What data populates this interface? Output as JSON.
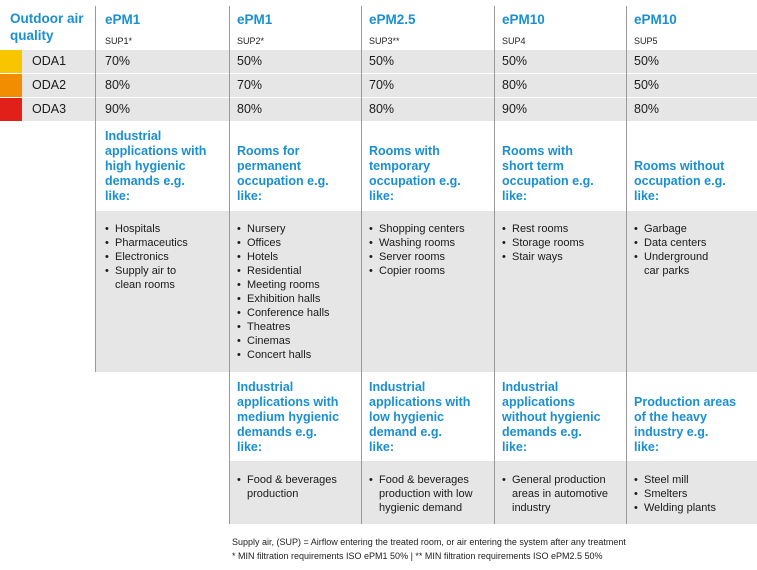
{
  "row_header": {
    "line1": "Outdoor air",
    "line2": "quality"
  },
  "columns": [
    {
      "title": "ePM1",
      "sup": "SUP1*"
    },
    {
      "title": "ePM1",
      "sup": "SUP2*"
    },
    {
      "title": "ePM2.5",
      "sup": "SUP3**"
    },
    {
      "title": "ePM10",
      "sup": "SUP4"
    },
    {
      "title": "ePM10",
      "sup": "SUP5"
    }
  ],
  "oda_rows": [
    {
      "label": "ODA1",
      "color": "#f7c600",
      "values": [
        "70%",
        "50%",
        "50%",
        "50%",
        "50%"
      ]
    },
    {
      "label": "ODA2",
      "color": "#f28c00",
      "values": [
        "80%",
        "70%",
        "70%",
        "80%",
        "50%"
      ]
    },
    {
      "label": "ODA3",
      "color": "#e1201a",
      "values": [
        "90%",
        "80%",
        "80%",
        "90%",
        "80%"
      ]
    }
  ],
  "rooms": [
    {
      "title": [
        "Industrial",
        "applications with",
        "high hygienic",
        "demands e.g.",
        "like:"
      ],
      "items": [
        "Hospitals",
        "Pharmaceutics",
        "Electronics",
        "Supply air to",
        "clean rooms"
      ]
    },
    {
      "title": [
        "Rooms for",
        "permanent",
        "occupation e.g.",
        "like:"
      ],
      "items": [
        "Nursery",
        "Offices",
        "Hotels",
        "Residential",
        "Meeting rooms",
        "Exhibition halls",
        "Conference halls",
        "Theatres",
        "Cinemas",
        "Concert halls"
      ]
    },
    {
      "title": [
        "Rooms with",
        "temporary",
        "occupation e.g.",
        "like:"
      ],
      "items": [
        "Shopping centers",
        "Washing rooms",
        "Server rooms",
        "Copier rooms"
      ]
    },
    {
      "title": [
        "Rooms with",
        "short term",
        "occupation e.g.",
        "like:"
      ],
      "items": [
        "Rest rooms",
        "Storage rooms",
        "Stair ways"
      ]
    },
    {
      "title": [
        "Rooms without",
        "occupation e.g.",
        "like:"
      ],
      "items": [
        "Garbage",
        "Data centers",
        "Underground",
        "car parks"
      ]
    }
  ],
  "industrial": [
    {
      "title": [
        "Industrial",
        "applications with",
        "medium hygienic",
        "demands e.g.",
        "like:"
      ],
      "items": [
        "Food & beverages",
        "production"
      ]
    },
    {
      "title": [
        "Industrial",
        "applications with",
        "low hygienic",
        "demand e.g.",
        "like:"
      ],
      "items": [
        "Food & beverages",
        "production with low",
        "hygienic demand"
      ]
    },
    {
      "title": [
        "Industrial",
        "applications",
        "without hygienic",
        "demands e.g.",
        "like:"
      ],
      "items": [
        "General production",
        "areas in automotive",
        "industry"
      ]
    },
    {
      "title": [
        "Production areas",
        "of the heavy",
        "industry e.g.",
        "like:"
      ],
      "items": [
        "Steel mill",
        "Smelters",
        "Welding plants"
      ]
    }
  ],
  "footnotes": {
    "line1": "Supply air, (SUP) = Airflow entering the treated room, or air entering the system after any treatment",
    "line2": "* MIN filtration requirements ISO ePM1 50% | ** MIN filtration requirements ISO ePM2.5 50%"
  }
}
